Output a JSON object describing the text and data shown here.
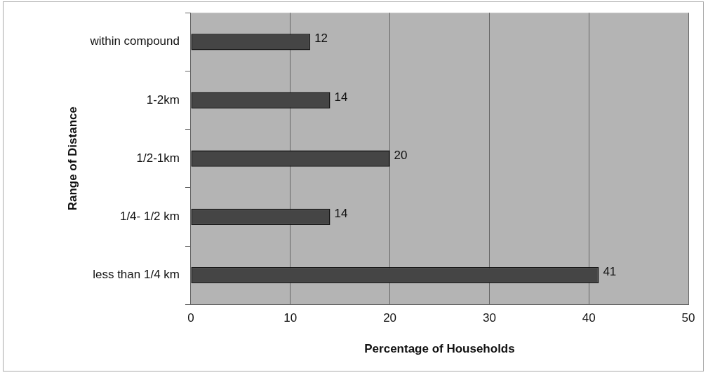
{
  "chart_data": {
    "type": "bar",
    "orientation": "horizontal",
    "categories": [
      "within compound",
      "1-2km",
      "1/2-1km",
      "1/4- 1/2 km",
      "less than 1/4 km"
    ],
    "values": [
      12,
      14,
      20,
      14,
      41
    ],
    "color": "#454545",
    "xlim": [
      0,
      50
    ],
    "xticks": [
      0,
      10,
      20,
      30,
      40,
      50
    ],
    "xlabel": "Percentage of Households",
    "ylabel": "Range of Distance",
    "grid": "x",
    "legend": false,
    "data_labels": true
  }
}
